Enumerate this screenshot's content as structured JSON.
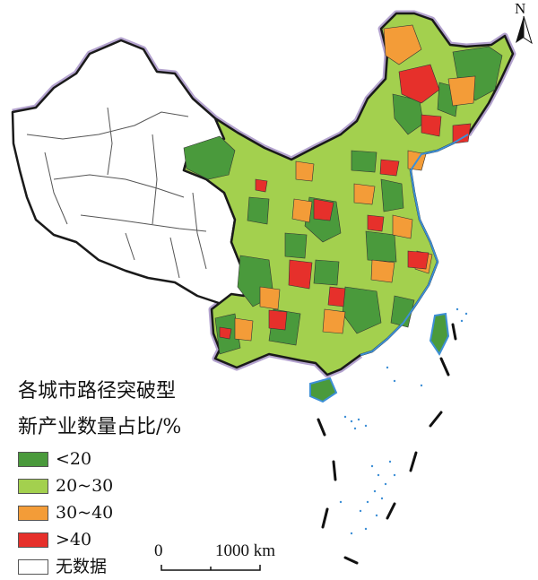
{
  "legend": {
    "title_line1": "各城市路径突破型",
    "title_line2": "新产业数量占比/%",
    "items": [
      {
        "label": "<20",
        "color": "#4a9a3c"
      },
      {
        "label": "20~30",
        "color": "#a3d04e"
      },
      {
        "label": "30~40",
        "color": "#f39c38"
      },
      {
        "label": ">40",
        "color": "#e6302b"
      },
      {
        "label": "无数据",
        "color": "#ffffff"
      }
    ]
  },
  "scale_bar": {
    "start_label": "0",
    "end_label": "1000 km"
  },
  "north_arrow": {
    "label": "N"
  },
  "colors": {
    "outline": "#1a1a1a",
    "border_halo": "#b4a3cf",
    "coast": "#3d8fd6",
    "internal_line": "#555555"
  }
}
